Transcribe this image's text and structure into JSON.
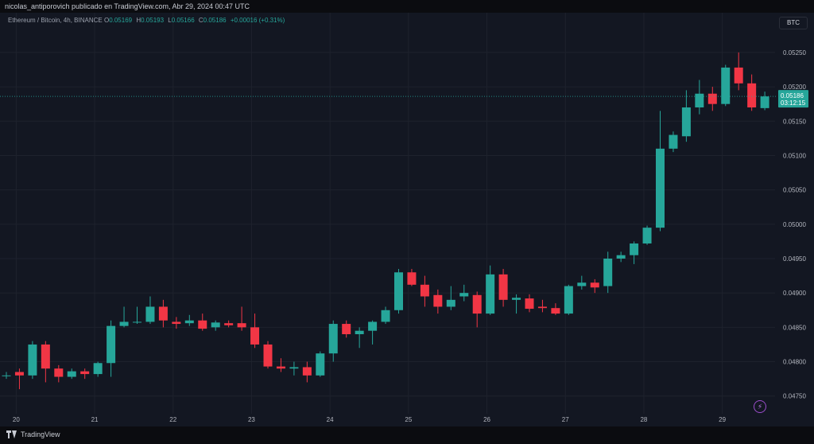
{
  "header": {
    "publisher_line": "nicolas_antiporovich publicado en TradingView.com, Abr 29, 2024 00:47 UTC"
  },
  "legend": {
    "symbol_line": "Ethereum / Bitcoin, 4h, BINANCE",
    "o_label": "O",
    "o_value": "0.05169",
    "h_label": "H",
    "h_value": "0.05193",
    "l_label": "L",
    "l_value": "0.05166",
    "c_label": "C",
    "c_value": "0.05186",
    "change": "+0.00016 (+0.31%)"
  },
  "toolbar": {
    "currency": "BTC"
  },
  "price_tag": {
    "price": "0.05186",
    "countdown": "03:12:15"
  },
  "footer": {
    "brand": "TradingView"
  },
  "colors": {
    "up": "#26a69a",
    "down": "#f23645",
    "background": "#131722",
    "grid": "#1e222d",
    "text": "#b2b5be"
  },
  "chart_data": {
    "type": "candlestick",
    "ylim": [
      0.0473,
      0.0528
    ],
    "y_ticks": [
      "0.04750",
      "0.04800",
      "0.04850",
      "0.04900",
      "0.04950",
      "0.05000",
      "0.05050",
      "0.05100",
      "0.05150",
      "0.05200",
      "0.05250"
    ],
    "x_ticks": [
      "20",
      "21",
      "22",
      "23",
      "24",
      "25",
      "26",
      "27",
      "28",
      "29"
    ],
    "last_price": 0.05186,
    "candles": [
      {
        "o": 0.0478,
        "h": 0.04785,
        "l": 0.04775,
        "c": 0.0478
      },
      {
        "o": 0.04785,
        "h": 0.0479,
        "l": 0.0476,
        "c": 0.0478
      },
      {
        "o": 0.0478,
        "h": 0.0483,
        "l": 0.04775,
        "c": 0.04825
      },
      {
        "o": 0.04825,
        "h": 0.0483,
        "l": 0.0477,
        "c": 0.0479
      },
      {
        "o": 0.0479,
        "h": 0.04795,
        "l": 0.0477,
        "c": 0.04778
      },
      {
        "o": 0.04778,
        "h": 0.0479,
        "l": 0.04775,
        "c": 0.04786
      },
      {
        "o": 0.04786,
        "h": 0.0479,
        "l": 0.04775,
        "c": 0.04782
      },
      {
        "o": 0.04782,
        "h": 0.048,
        "l": 0.04778,
        "c": 0.04798
      },
      {
        "o": 0.04798,
        "h": 0.0486,
        "l": 0.04778,
        "c": 0.04852
      },
      {
        "o": 0.04852,
        "h": 0.0488,
        "l": 0.0485,
        "c": 0.04858
      },
      {
        "o": 0.04858,
        "h": 0.0488,
        "l": 0.04855,
        "c": 0.04858
      },
      {
        "o": 0.04858,
        "h": 0.04895,
        "l": 0.04855,
        "c": 0.0488
      },
      {
        "o": 0.0488,
        "h": 0.0489,
        "l": 0.0485,
        "c": 0.0486
      },
      {
        "o": 0.04858,
        "h": 0.04865,
        "l": 0.04848,
        "c": 0.04855
      },
      {
        "o": 0.04856,
        "h": 0.04868,
        "l": 0.04852,
        "c": 0.0486
      },
      {
        "o": 0.0486,
        "h": 0.0487,
        "l": 0.04845,
        "c": 0.04848
      },
      {
        "o": 0.0485,
        "h": 0.0486,
        "l": 0.04845,
        "c": 0.04857
      },
      {
        "o": 0.04856,
        "h": 0.0486,
        "l": 0.0485,
        "c": 0.04853
      },
      {
        "o": 0.04856,
        "h": 0.0488,
        "l": 0.04845,
        "c": 0.0485
      },
      {
        "o": 0.0485,
        "h": 0.0487,
        "l": 0.0482,
        "c": 0.04825
      },
      {
        "o": 0.04825,
        "h": 0.0483,
        "l": 0.0479,
        "c": 0.04793
      },
      {
        "o": 0.04793,
        "h": 0.04805,
        "l": 0.04785,
        "c": 0.0479
      },
      {
        "o": 0.0479,
        "h": 0.048,
        "l": 0.0478,
        "c": 0.04792
      },
      {
        "o": 0.04792,
        "h": 0.048,
        "l": 0.0477,
        "c": 0.0478
      },
      {
        "o": 0.0478,
        "h": 0.04815,
        "l": 0.04778,
        "c": 0.04812
      },
      {
        "o": 0.04812,
        "h": 0.0486,
        "l": 0.048,
        "c": 0.04855
      },
      {
        "o": 0.04855,
        "h": 0.0486,
        "l": 0.04835,
        "c": 0.0484
      },
      {
        "o": 0.0484,
        "h": 0.0485,
        "l": 0.0482,
        "c": 0.04845
      },
      {
        "o": 0.04845,
        "h": 0.0486,
        "l": 0.04825,
        "c": 0.04858
      },
      {
        "o": 0.04858,
        "h": 0.0488,
        "l": 0.04855,
        "c": 0.04875
      },
      {
        "o": 0.04875,
        "h": 0.04935,
        "l": 0.0487,
        "c": 0.0493
      },
      {
        "o": 0.0493,
        "h": 0.04935,
        "l": 0.0491,
        "c": 0.04912
      },
      {
        "o": 0.04912,
        "h": 0.04925,
        "l": 0.0488,
        "c": 0.04895
      },
      {
        "o": 0.04897,
        "h": 0.04905,
        "l": 0.0487,
        "c": 0.0488
      },
      {
        "o": 0.0488,
        "h": 0.0491,
        "l": 0.04875,
        "c": 0.0489
      },
      {
        "o": 0.04895,
        "h": 0.04912,
        "l": 0.04888,
        "c": 0.049
      },
      {
        "o": 0.04897,
        "h": 0.04902,
        "l": 0.0485,
        "c": 0.0487
      },
      {
        "o": 0.0487,
        "h": 0.0494,
        "l": 0.04868,
        "c": 0.04927
      },
      {
        "o": 0.04927,
        "h": 0.04935,
        "l": 0.0488,
        "c": 0.0489
      },
      {
        "o": 0.0489,
        "h": 0.04898,
        "l": 0.0487,
        "c": 0.04893
      },
      {
        "o": 0.04892,
        "h": 0.04898,
        "l": 0.04872,
        "c": 0.04877
      },
      {
        "o": 0.0488,
        "h": 0.0489,
        "l": 0.04872,
        "c": 0.04878
      },
      {
        "o": 0.04878,
        "h": 0.04885,
        "l": 0.04868,
        "c": 0.0487
      },
      {
        "o": 0.0487,
        "h": 0.04912,
        "l": 0.04868,
        "c": 0.0491
      },
      {
        "o": 0.0491,
        "h": 0.04925,
        "l": 0.04905,
        "c": 0.04915
      },
      {
        "o": 0.04915,
        "h": 0.0492,
        "l": 0.049,
        "c": 0.04908
      },
      {
        "o": 0.0491,
        "h": 0.0496,
        "l": 0.049,
        "c": 0.0495
      },
      {
        "o": 0.0495,
        "h": 0.0496,
        "l": 0.04945,
        "c": 0.04955
      },
      {
        "o": 0.04955,
        "h": 0.04975,
        "l": 0.04942,
        "c": 0.04972
      },
      {
        "o": 0.04972,
        "h": 0.04998,
        "l": 0.0497,
        "c": 0.04995
      },
      {
        "o": 0.04995,
        "h": 0.05165,
        "l": 0.0499,
        "c": 0.0511
      },
      {
        "o": 0.0511,
        "h": 0.05135,
        "l": 0.05105,
        "c": 0.0513
      },
      {
        "o": 0.05128,
        "h": 0.05195,
        "l": 0.0512,
        "c": 0.0517
      },
      {
        "o": 0.0517,
        "h": 0.0521,
        "l": 0.0516,
        "c": 0.0519
      },
      {
        "o": 0.0519,
        "h": 0.052,
        "l": 0.05165,
        "c": 0.05175
      },
      {
        "o": 0.05175,
        "h": 0.05232,
        "l": 0.05172,
        "c": 0.05228
      },
      {
        "o": 0.05228,
        "h": 0.0525,
        "l": 0.05195,
        "c": 0.05205
      },
      {
        "o": 0.05205,
        "h": 0.05218,
        "l": 0.05165,
        "c": 0.0517
      },
      {
        "o": 0.05169,
        "h": 0.05193,
        "l": 0.05166,
        "c": 0.05186
      }
    ]
  }
}
